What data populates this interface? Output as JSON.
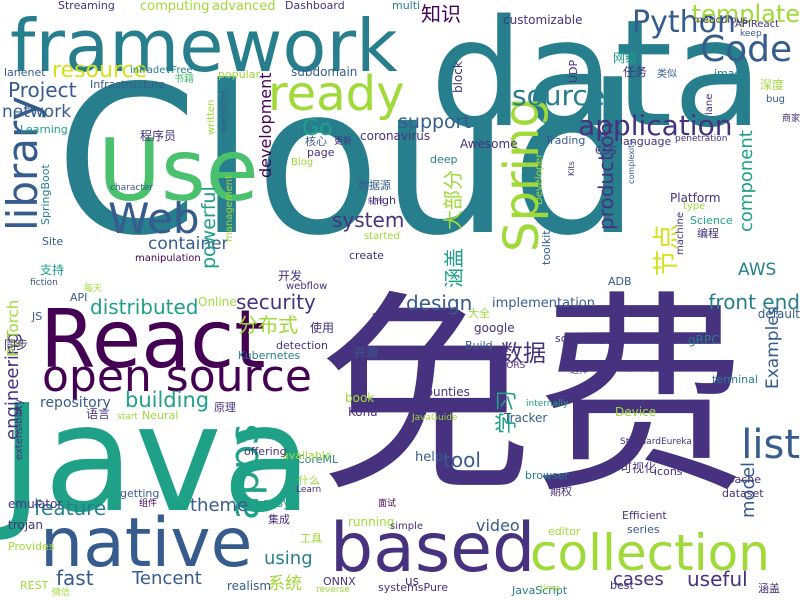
{
  "palette": {
    "p1": "#440154",
    "p2": "#46327e",
    "p3": "#365c8d",
    "p4": "#277f8e",
    "p5": "#1fa187",
    "p6": "#4ac16d",
    "p7": "#a0da39",
    "p8": "#d2e21b"
  },
  "words": [
    {
      "text": "Cloud",
      "color": "p4"
    },
    {
      "text": "免费",
      "color": "p2"
    },
    {
      "text": "Java",
      "color": "p5"
    },
    {
      "text": "data",
      "color": "p4"
    },
    {
      "text": "framework",
      "color": "p4"
    },
    {
      "text": "React",
      "color": "p1"
    },
    {
      "text": "native",
      "color": "p3"
    },
    {
      "text": "based",
      "color": "p2"
    },
    {
      "text": "collection",
      "color": "p7"
    },
    {
      "text": "open source",
      "color": "p1"
    },
    {
      "text": "Use",
      "color": "p6"
    },
    {
      "text": "Web",
      "color": "p3"
    },
    {
      "text": "ready",
      "color": "p7"
    },
    {
      "text": "Code",
      "color": "p3"
    },
    {
      "text": "Spring",
      "color": "p7"
    },
    {
      "text": "library",
      "color": "p3"
    },
    {
      "text": "apps",
      "color": "p5"
    },
    {
      "text": "list",
      "color": "p3"
    },
    {
      "text": "application",
      "color": "p2"
    },
    {
      "text": "source",
      "color": "p4"
    },
    {
      "text": "Python",
      "color": "p3"
    },
    {
      "text": "template",
      "color": "p7"
    },
    {
      "text": "resource",
      "color": "p8"
    },
    {
      "text": "Project",
      "color": "p3"
    },
    {
      "text": "network",
      "color": "p3"
    },
    {
      "text": "Go",
      "color": "p5"
    },
    {
      "text": "support",
      "color": "p3"
    },
    {
      "text": "system",
      "color": "p2"
    },
    {
      "text": "container",
      "color": "p3"
    },
    {
      "text": "powerful",
      "color": "p5"
    },
    {
      "text": "development",
      "color": "p1"
    },
    {
      "text": "production",
      "color": "p2"
    },
    {
      "text": "component",
      "color": "p5"
    },
    {
      "text": "节点",
      "color": "p8"
    },
    {
      "text": "AWS",
      "color": "p4"
    },
    {
      "text": "distributed",
      "color": "p5"
    },
    {
      "text": "security",
      "color": "p2"
    },
    {
      "text": "分布式",
      "color": "p7"
    },
    {
      "text": "design",
      "color": "p3"
    },
    {
      "text": "front end",
      "color": "p4"
    },
    {
      "text": "数据",
      "color": "p2"
    },
    {
      "text": "building",
      "color": "p5"
    },
    {
      "text": "engineering",
      "color": "p2"
    },
    {
      "text": "Examples",
      "color": "p3"
    },
    {
      "text": "model",
      "color": "p3"
    },
    {
      "text": "tool",
      "color": "p3"
    },
    {
      "text": "学习",
      "color": "p5"
    },
    {
      "text": "feature",
      "color": "p4"
    },
    {
      "text": "theme",
      "color": "p3"
    },
    {
      "text": "fast",
      "color": "p3"
    },
    {
      "text": "using",
      "color": "p4"
    },
    {
      "text": "Tencent",
      "color": "p3"
    },
    {
      "text": "video",
      "color": "p3"
    },
    {
      "text": "cases",
      "color": "p2"
    },
    {
      "text": "useful",
      "color": "p2"
    },
    {
      "text": "系统",
      "color": "p7"
    },
    {
      "text": "涵盖",
      "color": "p5"
    },
    {
      "text": "大部分",
      "color": "p7"
    },
    {
      "text": "知识",
      "color": "p1"
    },
    {
      "text": "PyTorch",
      "color": "p7"
    },
    {
      "text": "repository",
      "color": "p3"
    },
    {
      "text": "Streaming",
      "color": "p2"
    },
    {
      "text": "computing",
      "color": "p7"
    },
    {
      "text": "advanced",
      "color": "p7"
    },
    {
      "text": "Dashboard",
      "color": "p2"
    },
    {
      "text": "multi",
      "color": "p4"
    },
    {
      "text": "customizable",
      "color": "p2"
    },
    {
      "text": "meticulous",
      "color": "p2"
    },
    {
      "text": "APIReact",
      "color": "p2"
    },
    {
      "text": "keep",
      "color": "p3"
    },
    {
      "text": "infradevFree",
      "color": "p4"
    },
    {
      "text": "lanenet",
      "color": "p3"
    },
    {
      "text": "Infrastructure",
      "color": "p3"
    },
    {
      "text": "书籍",
      "color": "p6"
    },
    {
      "text": "popular",
      "color": "p7"
    },
    {
      "text": "subdomain",
      "color": "p3"
    },
    {
      "text": "UDP",
      "color": "p2"
    },
    {
      "text": "网络",
      "color": "p5"
    },
    {
      "text": "任务",
      "color": "p2"
    },
    {
      "text": "image",
      "color": "p4"
    },
    {
      "text": "深度",
      "color": "p7"
    },
    {
      "text": "block",
      "color": "p2"
    },
    {
      "text": "类似",
      "color": "p3"
    },
    {
      "text": "lane",
      "color": "p2"
    },
    {
      "text": "bug",
      "color": "p3"
    },
    {
      "text": "商家",
      "color": "p2"
    },
    {
      "text": "Learning",
      "color": "p5"
    },
    {
      "text": "written",
      "color": "p7"
    },
    {
      "text": "websites",
      "color": "p3"
    },
    {
      "text": "程序员",
      "color": "p2"
    },
    {
      "text": "核心",
      "color": "p3"
    },
    {
      "text": "更新",
      "color": "p2"
    },
    {
      "text": "coronavirus",
      "color": "p2"
    },
    {
      "text": "Trading",
      "color": "p3"
    },
    {
      "text": "CSS",
      "color": "p2"
    },
    {
      "text": "language",
      "color": "p2"
    },
    {
      "text": "penetration",
      "color": "p2"
    },
    {
      "text": "page",
      "color": "p2"
    },
    {
      "text": "Blog",
      "color": "p7"
    },
    {
      "text": "Awesome",
      "color": "p2"
    },
    {
      "text": "deep",
      "color": "p4"
    },
    {
      "text": "Kits",
      "color": "p2"
    },
    {
      "text": "complexity",
      "color": "p3"
    },
    {
      "text": "character",
      "color": "p3"
    },
    {
      "text": "数据源",
      "color": "p3"
    },
    {
      "text": "high",
      "color": "p2"
    },
    {
      "text": "Developer",
      "color": "p7"
    },
    {
      "text": "Platform",
      "color": "p2"
    },
    {
      "text": "type",
      "color": "p7"
    },
    {
      "text": "Science",
      "color": "p5"
    },
    {
      "text": "编程",
      "color": "p2"
    },
    {
      "text": "SpringBoot",
      "color": "p4"
    },
    {
      "text": "Site",
      "color": "p3"
    },
    {
      "text": "management",
      "color": "p7"
    },
    {
      "text": "manipulation",
      "color": "p1"
    },
    {
      "text": "制作",
      "color": "p2"
    },
    {
      "text": "toolkit",
      "color": "p3"
    },
    {
      "text": "started",
      "color": "p7"
    },
    {
      "text": "machine",
      "color": "p2"
    },
    {
      "text": "create",
      "color": "p2"
    },
    {
      "text": "支持",
      "color": "p5"
    },
    {
      "text": "开发",
      "color": "p2"
    },
    {
      "text": "webflow",
      "color": "p2"
    },
    {
      "text": "fiction",
      "color": "p3"
    },
    {
      "text": "每天",
      "color": "p7"
    },
    {
      "text": "API",
      "color": "p3"
    },
    {
      "text": "Online",
      "color": "p7"
    },
    {
      "text": "implementation",
      "color": "p3"
    },
    {
      "text": "ADB",
      "color": "p3"
    },
    {
      "text": "JS",
      "color": "p3"
    },
    {
      "text": "seriesYOLOv3",
      "color": "p2"
    },
    {
      "text": "大全",
      "color": "p7"
    },
    {
      "text": "google",
      "color": "p2"
    },
    {
      "text": "default",
      "color": "p3"
    },
    {
      "text": "使用",
      "color": "p2"
    },
    {
      "text": "detection",
      "color": "p2"
    },
    {
      "text": "Build",
      "color": "p3"
    },
    {
      "text": "gRPC",
      "color": "p4"
    },
    {
      "text": "同步",
      "color": "p2"
    },
    {
      "text": "Kubernetes",
      "color": "p4"
    },
    {
      "text": "开源",
      "color": "p3"
    },
    {
      "text": "scanning",
      "color": "p2"
    },
    {
      "text": "CORS",
      "color": "p2"
    },
    {
      "text": "选择",
      "color": "p2"
    },
    {
      "text": "proxy",
      "color": "p2"
    },
    {
      "text": "terminal",
      "color": "p4"
    },
    {
      "text": "Neural",
      "color": "p7"
    },
    {
      "text": "book",
      "color": "p7"
    },
    {
      "text": "bounties",
      "color": "p2"
    },
    {
      "text": "mobile",
      "color": "p2"
    },
    {
      "text": "internally",
      "color": "p5"
    },
    {
      "text": "Device",
      "color": "p7"
    },
    {
      "text": "语言",
      "color": "p2"
    },
    {
      "text": "start",
      "color": "p7"
    },
    {
      "text": "原理",
      "color": "p2"
    },
    {
      "text": "Kona",
      "color": "p2"
    },
    {
      "text": "JavaGuide",
      "color": "p7"
    },
    {
      "text": "Tracker",
      "color": "p3"
    },
    {
      "text": "StandardEureka",
      "color": "p2"
    },
    {
      "text": "extensibility",
      "color": "p2"
    },
    {
      "text": "CoreML",
      "color": "p4"
    },
    {
      "text": "available",
      "color": "p7"
    },
    {
      "text": "offering",
      "color": "p2"
    },
    {
      "text": "help",
      "color": "p3"
    },
    {
      "text": "可视化",
      "color": "p2"
    },
    {
      "text": "icons",
      "color": "p2"
    },
    {
      "text": "Apache",
      "color": "p2"
    },
    {
      "text": "browser",
      "color": "p4"
    },
    {
      "text": "getting",
      "color": "p3"
    },
    {
      "text": "组件",
      "color": "p1"
    },
    {
      "text": "什么",
      "color": "p7"
    },
    {
      "text": "Learn",
      "color": "p2"
    },
    {
      "text": "期权",
      "color": "p2"
    },
    {
      "text": "dataset",
      "color": "p2"
    },
    {
      "text": "emulator",
      "color": "p2"
    },
    {
      "text": "easy",
      "color": "p5"
    },
    {
      "text": "面试",
      "color": "p1"
    },
    {
      "text": "trojan",
      "color": "p2"
    },
    {
      "text": "集成",
      "color": "p2"
    },
    {
      "text": "工具",
      "color": "p7"
    },
    {
      "text": "running",
      "color": "p7"
    },
    {
      "text": "simple",
      "color": "p2"
    },
    {
      "text": "editor",
      "color": "p7"
    },
    {
      "text": "Efficient",
      "color": "p2"
    },
    {
      "text": "series",
      "color": "p3"
    },
    {
      "text": "Provides",
      "color": "p7"
    },
    {
      "text": "REST",
      "color": "p7"
    },
    {
      "text": "微信",
      "color": "p7"
    },
    {
      "text": "realism",
      "color": "p3"
    },
    {
      "text": "ONNX",
      "color": "p2"
    },
    {
      "text": "reverse",
      "color": "p7"
    },
    {
      "text": "systemsPure",
      "color": "p2"
    },
    {
      "text": "us",
      "color": "p2"
    },
    {
      "text": "JavaScript",
      "color": "p4"
    },
    {
      "text": "time",
      "color": "p7"
    },
    {
      "text": "best",
      "color": "p2"
    },
    {
      "text": "涵盖",
      "color": "p2"
    },
    {
      "text": "程序",
      "color": "p7"
    }
  ]
}
